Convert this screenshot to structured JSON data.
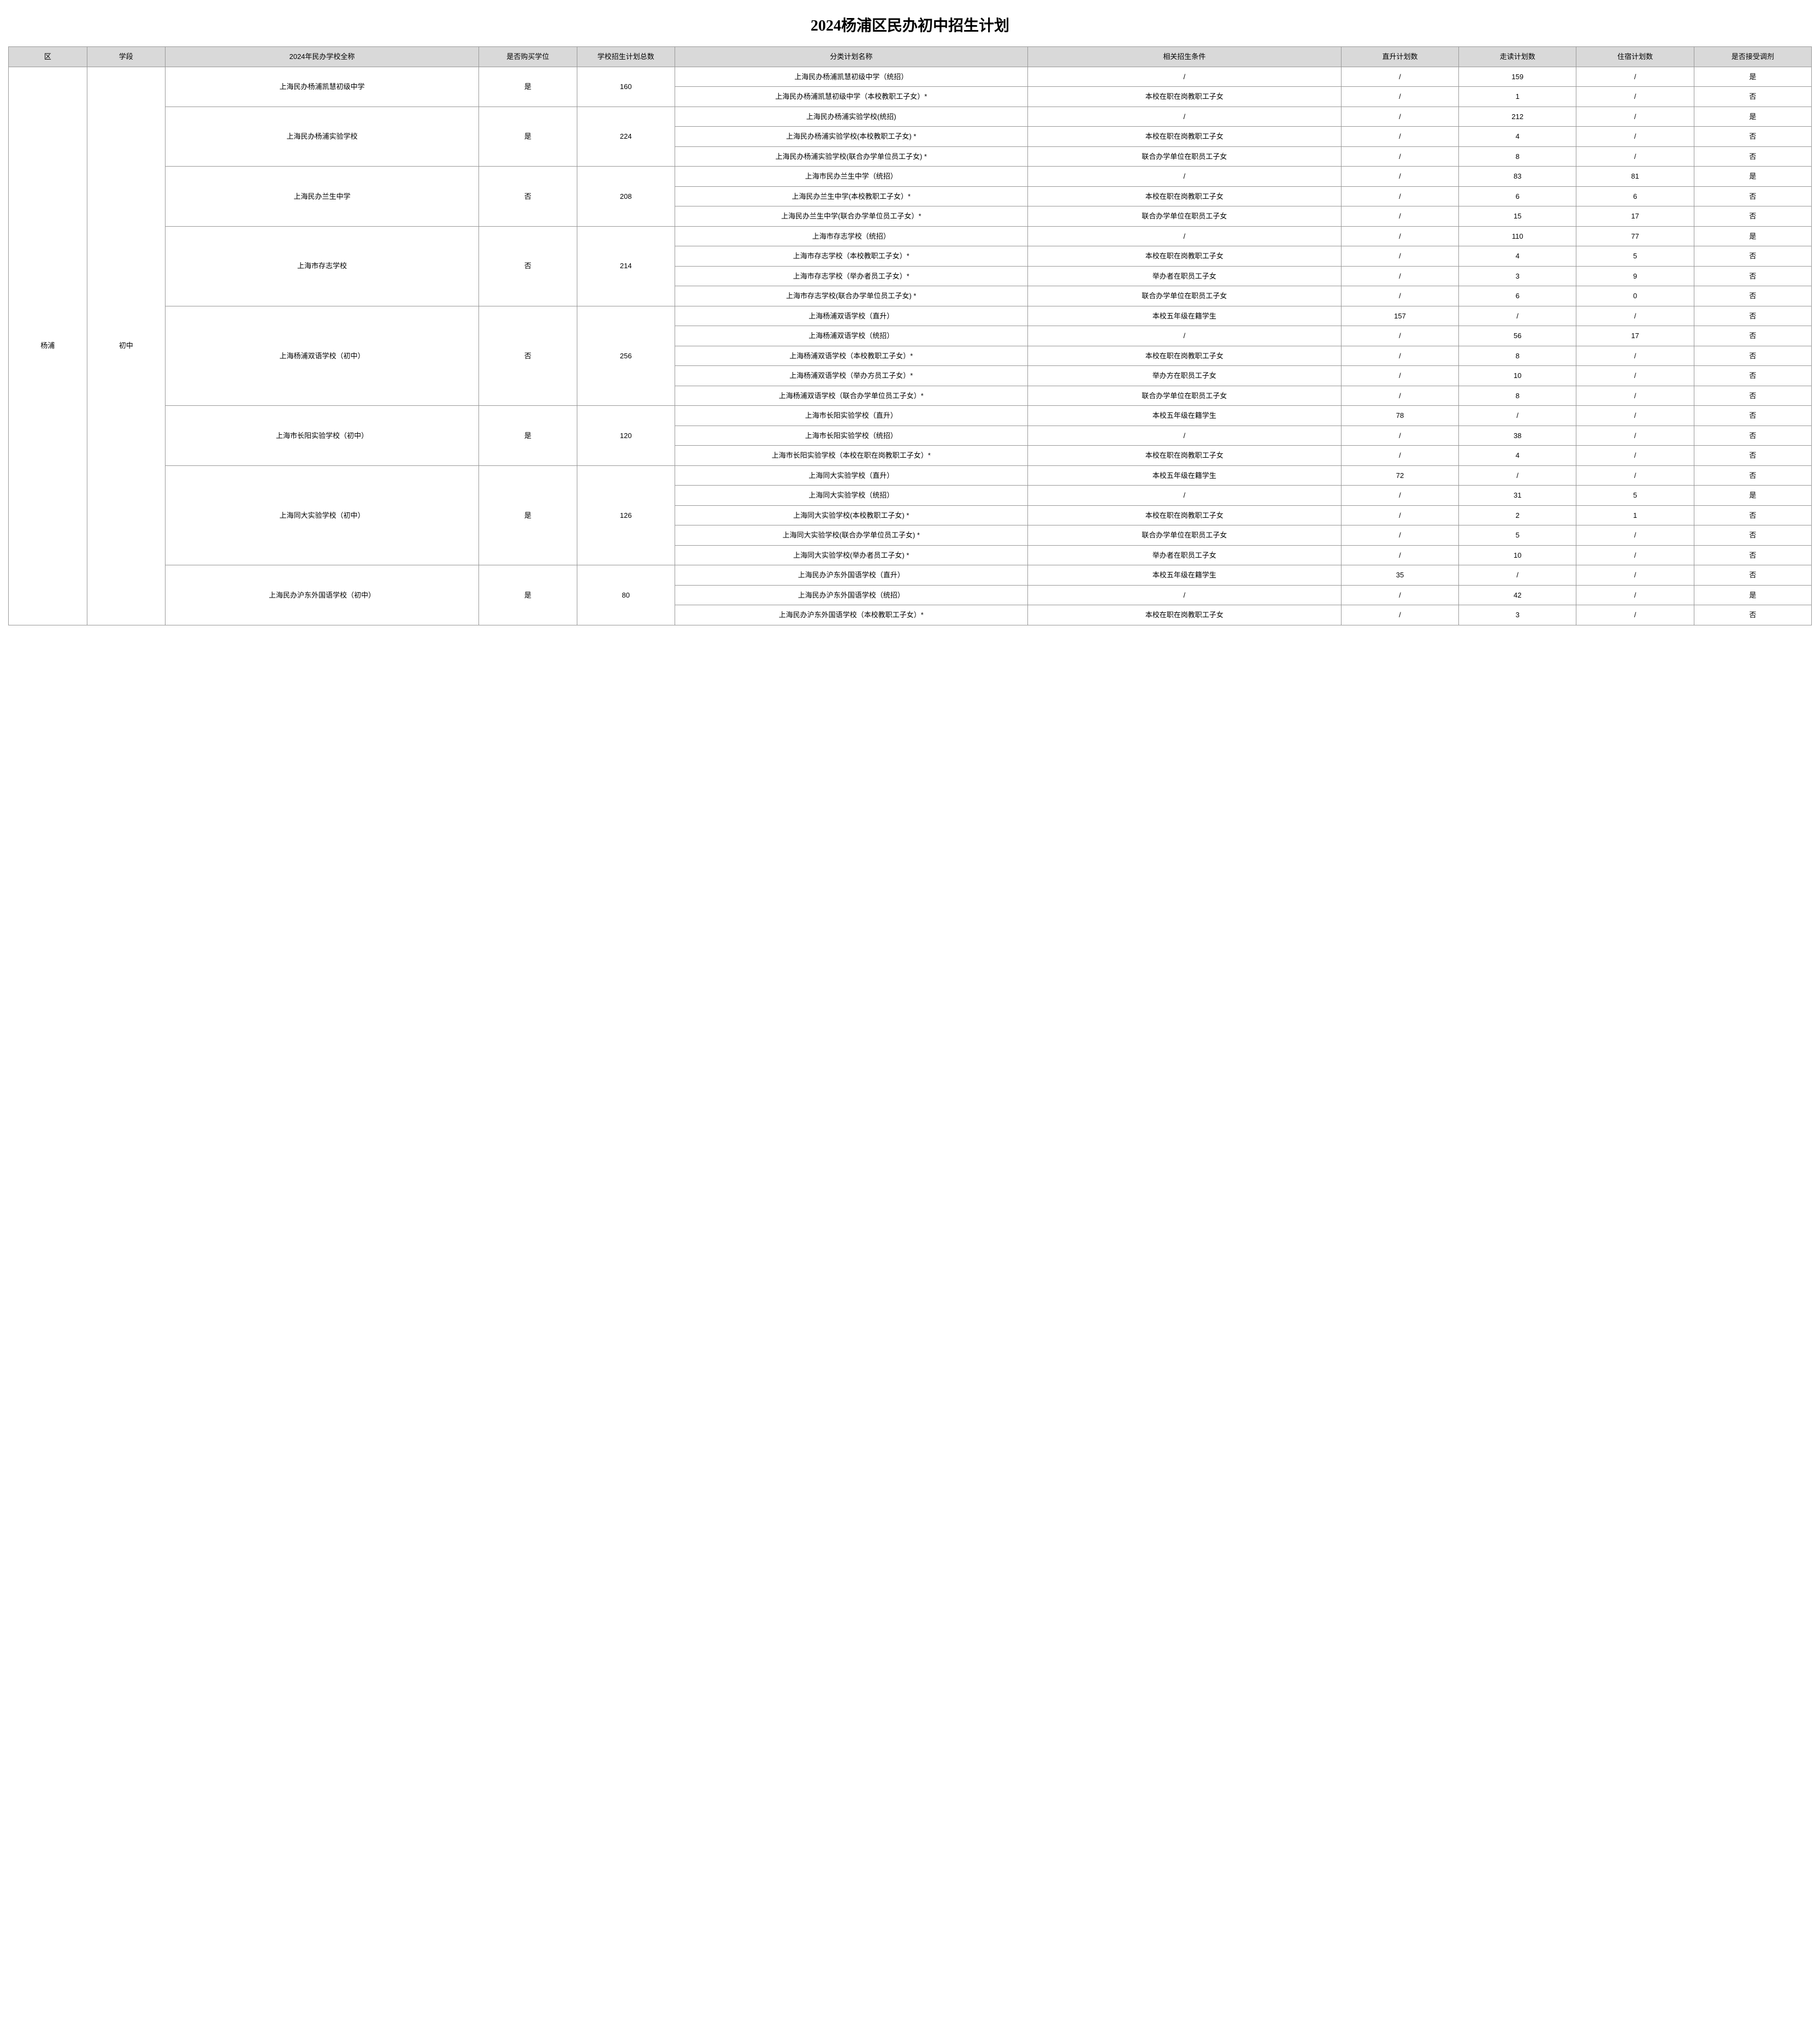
{
  "title": "2024杨浦区民办初中招生计划",
  "columns": {
    "district": "区",
    "stage": "学段",
    "schoolName": "2024年民办学校全称",
    "purchase": "是否购买学位",
    "totalPlan": "学校招生计划总数",
    "categoryPlan": "分类计划名称",
    "condition": "相关招生条件",
    "directPlan": "直升计划数",
    "dayPlan": "走读计划数",
    "boardPlan": "住宿计划数",
    "acceptTransfer": "是否接受调剂"
  },
  "district": "杨浦",
  "stage": "初中",
  "schools": [
    {
      "name": "上海民办杨浦凯慧初级中学",
      "purchase": "是",
      "total": "160",
      "plans": [
        {
          "name": "上海民办杨浦凯慧初级中学（统招）",
          "cond": "/",
          "direct": "/",
          "day": "159",
          "board": "/",
          "transfer": "是"
        },
        {
          "name": "上海民办杨浦凯慧初级中学（本校教职工子女）*",
          "cond": "本校在职在岗教职工子女",
          "direct": "/",
          "day": "1",
          "board": "/",
          "transfer": "否"
        }
      ]
    },
    {
      "name": "上海民办杨浦实验学校",
      "purchase": "是",
      "total": "224",
      "plans": [
        {
          "name": "上海民办杨浦实验学校(统招)",
          "cond": "/",
          "direct": "/",
          "day": "212",
          "board": "/",
          "transfer": "是"
        },
        {
          "name": "上海民办杨浦实验学校(本校教职工子女) *",
          "cond": "本校在职在岗教职工子女",
          "direct": "/",
          "day": "4",
          "board": "/",
          "transfer": "否"
        },
        {
          "name": "上海民办杨浦实验学校(联合办学单位员工子女) *",
          "cond": "联合办学单位在职员工子女",
          "direct": "/",
          "day": "8",
          "board": "/",
          "transfer": "否"
        }
      ]
    },
    {
      "name": "上海民办兰生中学",
      "purchase": "否",
      "total": "208",
      "plans": [
        {
          "name": "上海市民办兰生中学（统招）",
          "cond": "/",
          "direct": "/",
          "day": "83",
          "board": "81",
          "transfer": "是"
        },
        {
          "name": "上海民办兰生中学(本校教职工子女）*",
          "cond": "本校在职在岗教职工子女",
          "direct": "/",
          "day": "6",
          "board": "6",
          "transfer": "否"
        },
        {
          "name": "上海民办兰生中学(联合办学单位员工子女）*",
          "cond": "联合办学单位在职员工子女",
          "direct": "/",
          "day": "15",
          "board": "17",
          "transfer": "否"
        }
      ]
    },
    {
      "name": "上海市存志学校",
      "purchase": "否",
      "total": "214",
      "plans": [
        {
          "name": "上海市存志学校（统招）",
          "cond": "/",
          "direct": "/",
          "day": "110",
          "board": "77",
          "transfer": "是"
        },
        {
          "name": "上海市存志学校（本校教职工子女）*",
          "cond": "本校在职在岗教职工子女",
          "direct": "/",
          "day": "4",
          "board": "5",
          "transfer": "否"
        },
        {
          "name": "上海市存志学校（举办者员工子女）*",
          "cond": "举办者在职员工子女",
          "direct": "/",
          "day": "3",
          "board": "9",
          "transfer": "否"
        },
        {
          "name": "上海市存志学校(联合办学单位员工子女) *",
          "cond": "联合办学单位在职员工子女",
          "direct": "/",
          "day": "6",
          "board": "0",
          "transfer": "否"
        }
      ]
    },
    {
      "name": "上海杨浦双语学校（初中）",
      "purchase": "否",
      "total": "256",
      "plans": [
        {
          "name": "上海杨浦双语学校（直升）",
          "cond": "本校五年级在籍学生",
          "direct": "157",
          "day": "/",
          "board": "/",
          "transfer": "否"
        },
        {
          "name": "上海杨浦双语学校（统招）",
          "cond": "/",
          "direct": "/",
          "day": "56",
          "board": "17",
          "transfer": "否"
        },
        {
          "name": "上海杨浦双语学校（本校教职工子女）*",
          "cond": "本校在职在岗教职工子女",
          "direct": "/",
          "day": "8",
          "board": "/",
          "transfer": "否"
        },
        {
          "name": "上海杨浦双语学校（举办方员工子女）*",
          "cond": "举办方在职员工子女",
          "direct": "/",
          "day": "10",
          "board": "/",
          "transfer": "否"
        },
        {
          "name": "上海杨浦双语学校（联合办学单位员工子女）*",
          "cond": "联合办学单位在职员工子女",
          "direct": "/",
          "day": "8",
          "board": "/",
          "transfer": "否"
        }
      ]
    },
    {
      "name": "上海市长阳实验学校（初中）",
      "purchase": "是",
      "total": "120",
      "plans": [
        {
          "name": "上海市长阳实验学校（直升）",
          "cond": "本校五年级在籍学生",
          "direct": "78",
          "day": "/",
          "board": "/",
          "transfer": "否"
        },
        {
          "name": "上海市长阳实验学校（统招）",
          "cond": "/",
          "direct": "/",
          "day": "38",
          "board": "/",
          "transfer": "否"
        },
        {
          "name": "上海市长阳实验学校（本校在职在岗教职工子女）*",
          "cond": "本校在职在岗教职工子女",
          "direct": "/",
          "day": "4",
          "board": "/",
          "transfer": "否"
        }
      ]
    },
    {
      "name": "上海同大实验学校（初中）",
      "purchase": "是",
      "total": "126",
      "plans": [
        {
          "name": "上海同大实验学校（直升）",
          "cond": "本校五年级在籍学生",
          "direct": "72",
          "day": "/",
          "board": "/",
          "transfer": "否"
        },
        {
          "name": "上海同大实验学校（统招）",
          "cond": "/",
          "direct": "/",
          "day": "31",
          "board": "5",
          "transfer": "是"
        },
        {
          "name": "上海同大实验学校(本校教职工子女) *",
          "cond": "本校在职在岗教职工子女",
          "direct": "/",
          "day": "2",
          "board": "1",
          "transfer": "否"
        },
        {
          "name": "上海同大实验学校(联合办学单位员工子女) *",
          "cond": "联合办学单位在职员工子女",
          "direct": "/",
          "day": "5",
          "board": "/",
          "transfer": "否"
        },
        {
          "name": "上海同大实验学校(举办者员工子女) *",
          "cond": "举办者在职员工子女",
          "direct": "/",
          "day": "10",
          "board": "/",
          "transfer": "否"
        }
      ]
    },
    {
      "name": "上海民办沪东外国语学校（初中）",
      "purchase": "是",
      "total": "80",
      "plans": [
        {
          "name": "上海民办沪东外国语学校（直升）",
          "cond": "本校五年级在籍学生",
          "direct": "35",
          "day": "/",
          "board": "/",
          "transfer": "否"
        },
        {
          "name": "上海民办沪东外国语学校（统招）",
          "cond": "/",
          "direct": "/",
          "day": "42",
          "board": "/",
          "transfer": "是"
        },
        {
          "name": "上海民办沪东外国语学校（本校教职工子女）*",
          "cond": "本校在职在岗教职工子女",
          "direct": "/",
          "day": "3",
          "board": "/",
          "transfer": "否"
        }
      ]
    }
  ]
}
